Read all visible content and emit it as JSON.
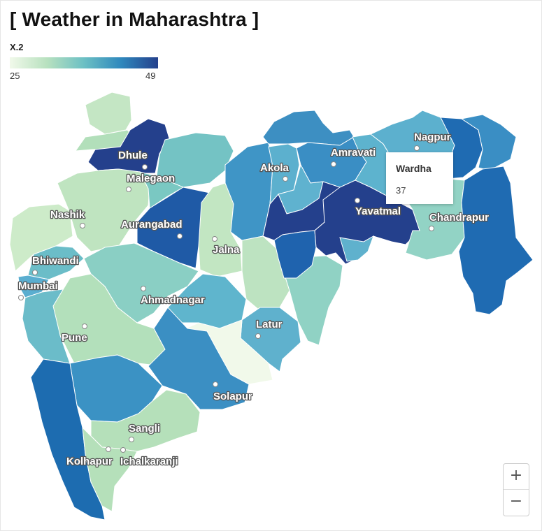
{
  "title": "[ Weather in Maharashtra ]",
  "legend": {
    "title": "X.2",
    "min": "25",
    "max": "49"
  },
  "map_data": {
    "value_range": [
      25,
      49
    ],
    "colors": {
      "low": "#f1f9ea",
      "high": "#24408c"
    },
    "cities": [
      "Dhule",
      "Malegaon",
      "Nashik",
      "Aurangabad",
      "Jalna",
      "Bhiwandi",
      "Mumbai",
      "Ahmadnagar",
      "Pune",
      "Latur",
      "Solapur",
      "Sangli",
      "Kolhapur",
      "Ichalkaranji",
      "Akola",
      "Amravati",
      "Nagpur",
      "Yavatmal",
      "Chandrapur"
    ]
  },
  "tooltip": {
    "name": "Wardha",
    "value": "37"
  },
  "zoom": {
    "in": "+",
    "out": "−"
  }
}
